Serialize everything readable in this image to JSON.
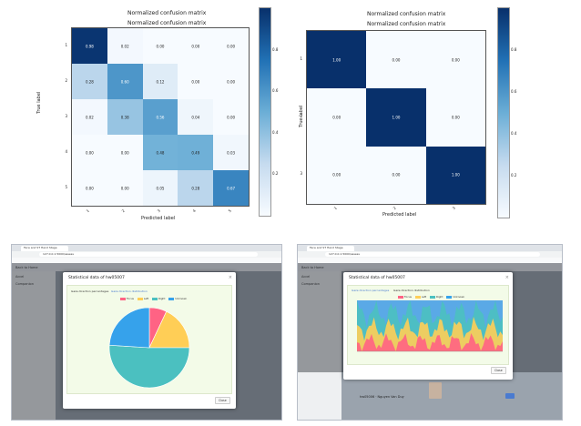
{
  "cm_left": {
    "title_back": "Normalized confusion matrix",
    "title_front": "Normalized confusion matrix",
    "ylabel": "True label",
    "xlabel": "Predicted label",
    "row_labels": [
      "1",
      "2",
      "3",
      "4",
      "5"
    ],
    "col_labels": [
      "1",
      "2",
      "3",
      "4",
      "5"
    ],
    "matrix": [
      [
        "0.98",
        "0.02",
        "0.00",
        "0.00",
        "0.00"
      ],
      [
        "0.28",
        "0.60",
        "0.12",
        "0.00",
        "0.00"
      ],
      [
        "0.02",
        "0.38",
        "0.56",
        "0.04",
        "0.00"
      ],
      [
        "0.00",
        "0.00",
        "0.48",
        "0.49",
        "0.03"
      ],
      [
        "0.00",
        "0.00",
        "0.05",
        "0.28",
        "0.67"
      ]
    ],
    "colorbar_ticks": [
      "0.8",
      "0.6",
      "0.4",
      "0.2"
    ]
  },
  "cm_right": {
    "title_back": "Normalized confusion matrix",
    "title_front": "Normalized confusion matrix",
    "ylabel": "True label",
    "xlabel": "Predicted label",
    "row_labels": [
      "1",
      "2",
      "3"
    ],
    "col_labels": [
      "1",
      "2",
      "3"
    ],
    "matrix": [
      [
        "1.00",
        "0.00",
        "0.00"
      ],
      [
        "0.00",
        "1.00",
        "0.00"
      ],
      [
        "0.00",
        "0.00",
        "1.00"
      ]
    ],
    "colorbar_ticks": [
      "0.8",
      "0.6",
      "0.4",
      "0.2"
    ]
  },
  "colors": {
    "blue_dark": "#08306b",
    "blue_mid": "#2171b5",
    "blue_light": "#c6dbef",
    "modal_body_bg": "#f3fbe8",
    "btn_blue": "#4a7bd0"
  },
  "browser_left": {
    "tab_label": "Face and ST Hand Stage",
    "url": "127.0.0.1:5000/assess",
    "back_link": "Back to Home",
    "side_items": [
      "Accel",
      "Companion"
    ],
    "modal_title": "Statistical data of hw05007",
    "tab_active": "Gaze direction percentages",
    "tab_other": "Gaze direction distribution",
    "legend": [
      {
        "label": "Focus",
        "color": "#ff6384"
      },
      {
        "label": "Left",
        "color": "#ffce56"
      },
      {
        "label": "Right",
        "color": "#4bc0c0"
      },
      {
        "label": "Unknown",
        "color": "#36a2eb"
      }
    ],
    "close_label": "Close",
    "pie_chart": {
      "type": "pie",
      "labels": [
        "Focus",
        "Left",
        "Right",
        "Unknown"
      ],
      "values": [
        7,
        18,
        51,
        24
      ],
      "colors": [
        "#ff6384",
        "#ffce56",
        "#4bc0c0",
        "#36a2eb"
      ]
    }
  },
  "browser_right": {
    "tab_label": "Face and ST Hand Stage",
    "url": "127.0.0.1:5000/assess",
    "back_link": "Back to Home",
    "side_items": [
      "Accel",
      "Companion"
    ],
    "modal_title": "Statistical data of hw05007",
    "tab_active": "Gaze direction percentages",
    "tab_other": "Gaze direction distribution",
    "legend": [
      {
        "label": "Focus",
        "color": "#ff6384"
      },
      {
        "label": "Left",
        "color": "#ffce56"
      },
      {
        "label": "Right",
        "color": "#4bc0c0"
      },
      {
        "label": "Unknown",
        "color": "#36a2eb"
      }
    ],
    "close_label": "Close",
    "row_text": "hw05006 · Nguyen Van Duy"
  }
}
